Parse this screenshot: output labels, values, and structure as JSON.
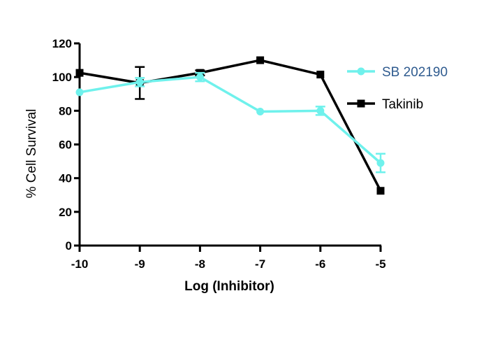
{
  "chart_data": {
    "type": "line",
    "title": "",
    "xlabel": "Log (Inhibitor)",
    "ylabel": "% Cell Survival",
    "xlim": [
      -10,
      -5
    ],
    "ylim": [
      0,
      120
    ],
    "x_ticks": [
      -10,
      -9,
      -8,
      -7,
      -6,
      -5
    ],
    "x_tick_labels": [
      "-10",
      "-9",
      "-8",
      "-7",
      "-6",
      "-5"
    ],
    "y_ticks": [
      0,
      20,
      40,
      60,
      80,
      100,
      120
    ],
    "y_tick_labels": [
      "0",
      "20",
      "40",
      "60",
      "80",
      "100",
      "120"
    ],
    "grid": false,
    "legend_position": "right",
    "series": [
      {
        "name": "Takinib",
        "color": "#000000",
        "marker": "square",
        "x": [
          -10,
          -9,
          -8,
          -7,
          -6,
          -5
        ],
        "y": [
          102.5,
          96.5,
          102.5,
          110,
          101.5,
          32.5
        ],
        "err": [
          0,
          9.5,
          1.5,
          0,
          0,
          0
        ]
      },
      {
        "name": "SB 202190",
        "color": "#6ff1ec",
        "marker": "circle",
        "x": [
          -10,
          -9,
          -8,
          -7,
          -6,
          -5
        ],
        "y": [
          91,
          97,
          100,
          79.5,
          80,
          49
        ],
        "err": [
          0,
          2.5,
          2.5,
          0,
          2.5,
          5.5
        ]
      }
    ],
    "legend": [
      {
        "name": "SB 202190",
        "color": "#6ff1ec",
        "text_color": "#2f5b8f",
        "marker": "circle"
      },
      {
        "name": "Takinib",
        "color": "#000000",
        "text_color": "#000000",
        "marker": "square"
      }
    ]
  }
}
